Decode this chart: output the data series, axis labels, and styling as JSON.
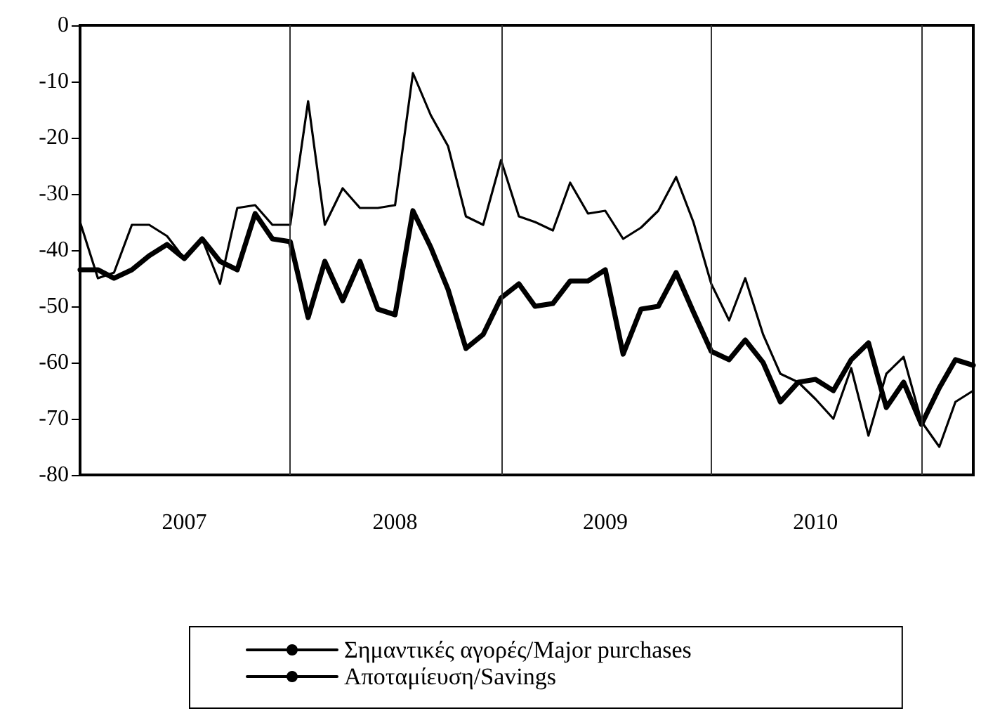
{
  "chart_data": {
    "type": "line",
    "x": [
      "2007-01",
      "2007-02",
      "2007-03",
      "2007-04",
      "2007-05",
      "2007-06",
      "2007-07",
      "2007-08",
      "2007-09",
      "2007-10",
      "2007-11",
      "2007-12",
      "2008-01",
      "2008-02",
      "2008-03",
      "2008-04",
      "2008-05",
      "2008-06",
      "2008-07",
      "2008-08",
      "2008-09",
      "2008-10",
      "2008-11",
      "2008-12",
      "2009-01",
      "2009-02",
      "2009-03",
      "2009-04",
      "2009-05",
      "2009-06",
      "2009-07",
      "2009-08",
      "2009-09",
      "2009-10",
      "2009-11",
      "2009-12",
      "2010-01",
      "2010-02",
      "2010-03",
      "2010-04",
      "2010-05",
      "2010-06",
      "2010-07",
      "2010-08",
      "2010-09",
      "2010-10",
      "2010-11",
      "2010-12",
      "2011-01",
      "2011-02",
      "2011-03",
      "2011-04"
    ],
    "series": [
      {
        "name": "Σημαντικές αγορές/Major purchases",
        "color": "#000000",
        "values": [
          -35,
          -45,
          -44,
          -35.5,
          -35.5,
          -37.5,
          -41.5,
          -38,
          -46,
          -32.5,
          -32,
          -35.5,
          -35.5,
          -13.5,
          -35.5,
          -29,
          -32.5,
          -32.5,
          -32,
          -8.5,
          -16,
          -21.5,
          -34,
          -35.5,
          -24,
          -34,
          -35,
          -36.5,
          -28,
          -33.5,
          -33,
          -38,
          -36,
          -33,
          -27,
          -35,
          -46,
          -52.5,
          -45,
          -55,
          -62,
          -63.5,
          -66.5,
          -70,
          -61,
          -73,
          -62,
          -59,
          -70.5,
          -75,
          -67,
          -65
        ]
      },
      {
        "name": "Αποταμίευση/Savings",
        "color": "#000000",
        "values": [
          -43.5,
          -43.5,
          -45,
          -43.5,
          -41,
          -39,
          -41.5,
          -38,
          -42,
          -43.5,
          -33.5,
          -38,
          -38.5,
          -52,
          -42,
          -49,
          -42,
          -50.5,
          -51.5,
          -33,
          -39.5,
          -47,
          -57.5,
          -55,
          -48.5,
          -46,
          -50,
          -49.5,
          -45.5,
          -45.5,
          -43.5,
          -58.5,
          -50.5,
          -50,
          -44,
          -51,
          -58,
          -59.5,
          -56,
          -60,
          -67,
          -63.5,
          -63,
          -65,
          -59.5,
          -56.5,
          -68,
          -63.5,
          -71,
          -64.5,
          -59.5,
          -60.5
        ]
      }
    ],
    "xlim": [
      "2007-01",
      "2011-04"
    ],
    "xticks": [
      {
        "value": "2007-07",
        "label": "2007"
      },
      {
        "value": "2008-07",
        "label": "2008"
      },
      {
        "value": "2009-07",
        "label": "2009"
      },
      {
        "value": "2010-07",
        "label": "2010"
      }
    ],
    "ylim": [
      -80,
      0
    ],
    "yticks": [
      -80,
      -70,
      -60,
      -50,
      -40,
      -30,
      -20,
      -10,
      0
    ],
    "ref_lines": [
      {
        "axis": "x",
        "value": "2008-01",
        "color": "#333333"
      },
      {
        "axis": "x",
        "value": "2009-01",
        "color": "#333333"
      },
      {
        "axis": "x",
        "value": "2010-01",
        "color": "#333333"
      },
      {
        "axis": "x",
        "value": "2011-01",
        "color": "#333333"
      }
    ],
    "grid": false,
    "legend": "bottom",
    "marker": "none",
    "line_style": "solid"
  }
}
